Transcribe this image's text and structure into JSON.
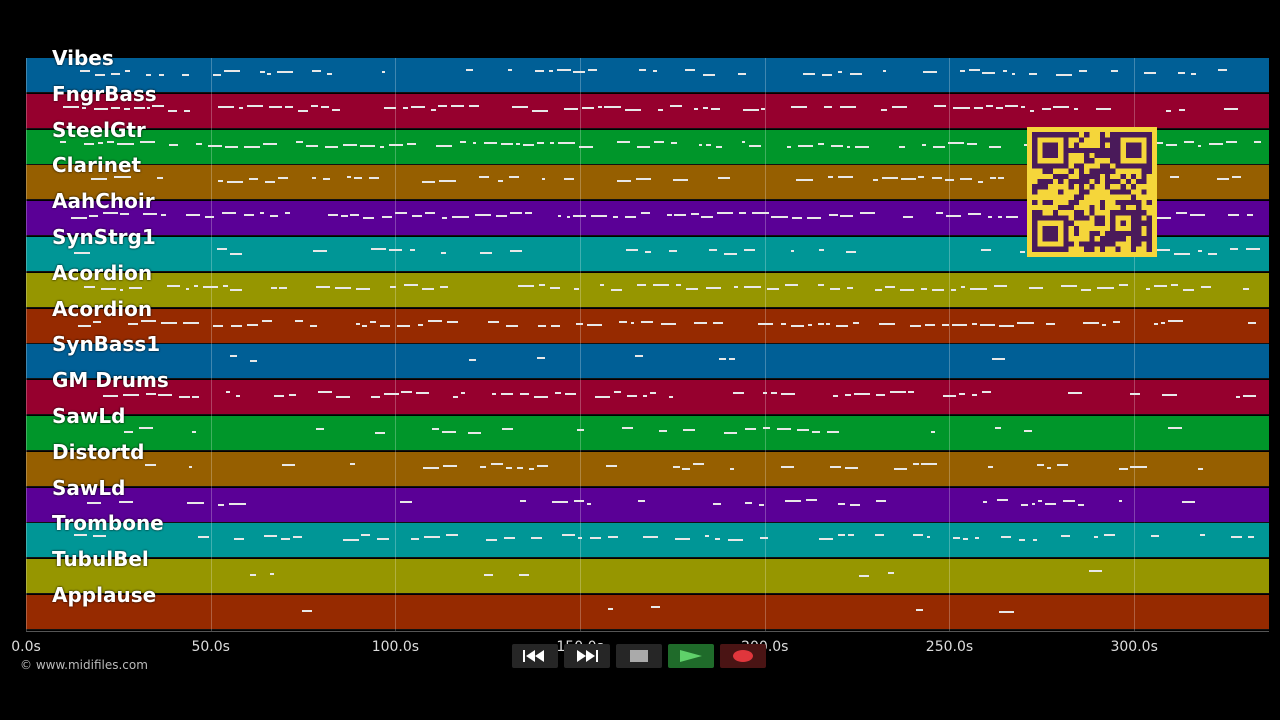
{
  "tracks": [
    {
      "name": "Vibes",
      "color": "#005f96"
    },
    {
      "name": "FngrBass",
      "color": "#96002e"
    },
    {
      "name": "SteelGtr",
      "color": "#00962a"
    },
    {
      "name": "Clarinet",
      "color": "#965f00"
    },
    {
      "name": "AahChoir",
      "color": "#5a0096"
    },
    {
      "name": "SynStrg1",
      "color": "#009696"
    },
    {
      "name": "Acordion",
      "color": "#969600"
    },
    {
      "name": "Acordion",
      "color": "#962a00"
    },
    {
      "name": "SynBass1",
      "color": "#005f96"
    },
    {
      "name": "GM Drums",
      "color": "#96002e"
    },
    {
      "name": "SawLd",
      "color": "#00962a"
    },
    {
      "name": "Distortd",
      "color": "#965f00"
    },
    {
      "name": "SawLd",
      "color": "#5a0096"
    },
    {
      "name": "Trombone",
      "color": "#009696"
    },
    {
      "name": "TubulBel",
      "color": "#969600"
    },
    {
      "name": "Applause",
      "color": "#962a00"
    }
  ],
  "timeline": {
    "ticks": [
      "0.0s",
      "50.0s",
      "100.0s",
      "150.0s",
      "200.0s",
      "250.0s",
      "300.0s"
    ],
    "tick_seconds": [
      0,
      50,
      100,
      150,
      200,
      250,
      300
    ],
    "duration_seconds": 336.5
  },
  "copyright": "© www.midifiles.com",
  "transport": {
    "rewind_icon": "rewind-icon",
    "fast_forward_icon": "fast-forward-icon",
    "stop_icon": "stop-icon",
    "play_icon": "play-icon",
    "record_icon": "record-icon",
    "play_color": "#5fd16a",
    "record_color": "#e0363c"
  },
  "qr_code": {
    "foreground": "#4a1a5a",
    "background": "#f5d63a"
  }
}
